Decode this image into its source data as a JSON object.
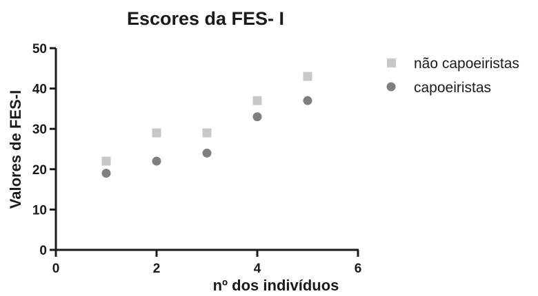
{
  "chart_data": {
    "type": "scatter",
    "title": "Escores da FES- I",
    "xlabel": "nº dos indivíduos",
    "ylabel": "Valores de FES-I",
    "xlim": [
      0,
      6
    ],
    "ylim": [
      0,
      50
    ],
    "xticks": [
      "0",
      "2",
      "4",
      "6"
    ],
    "yticks": [
      "0",
      "10",
      "20",
      "30",
      "40",
      "50"
    ],
    "grid": false,
    "legend_position": "top-right",
    "series": [
      {
        "name": "não capoeiristas",
        "marker": "square",
        "color": "#c8c8c8",
        "x": [
          1,
          2,
          3,
          4,
          5
        ],
        "y": [
          22,
          29,
          29,
          37,
          43
        ]
      },
      {
        "name": "capoeiristas",
        "marker": "circle",
        "color": "#7f7f7f",
        "x": [
          1,
          2,
          3,
          4,
          5
        ],
        "y": [
          19,
          22,
          24,
          33,
          37
        ]
      }
    ]
  }
}
